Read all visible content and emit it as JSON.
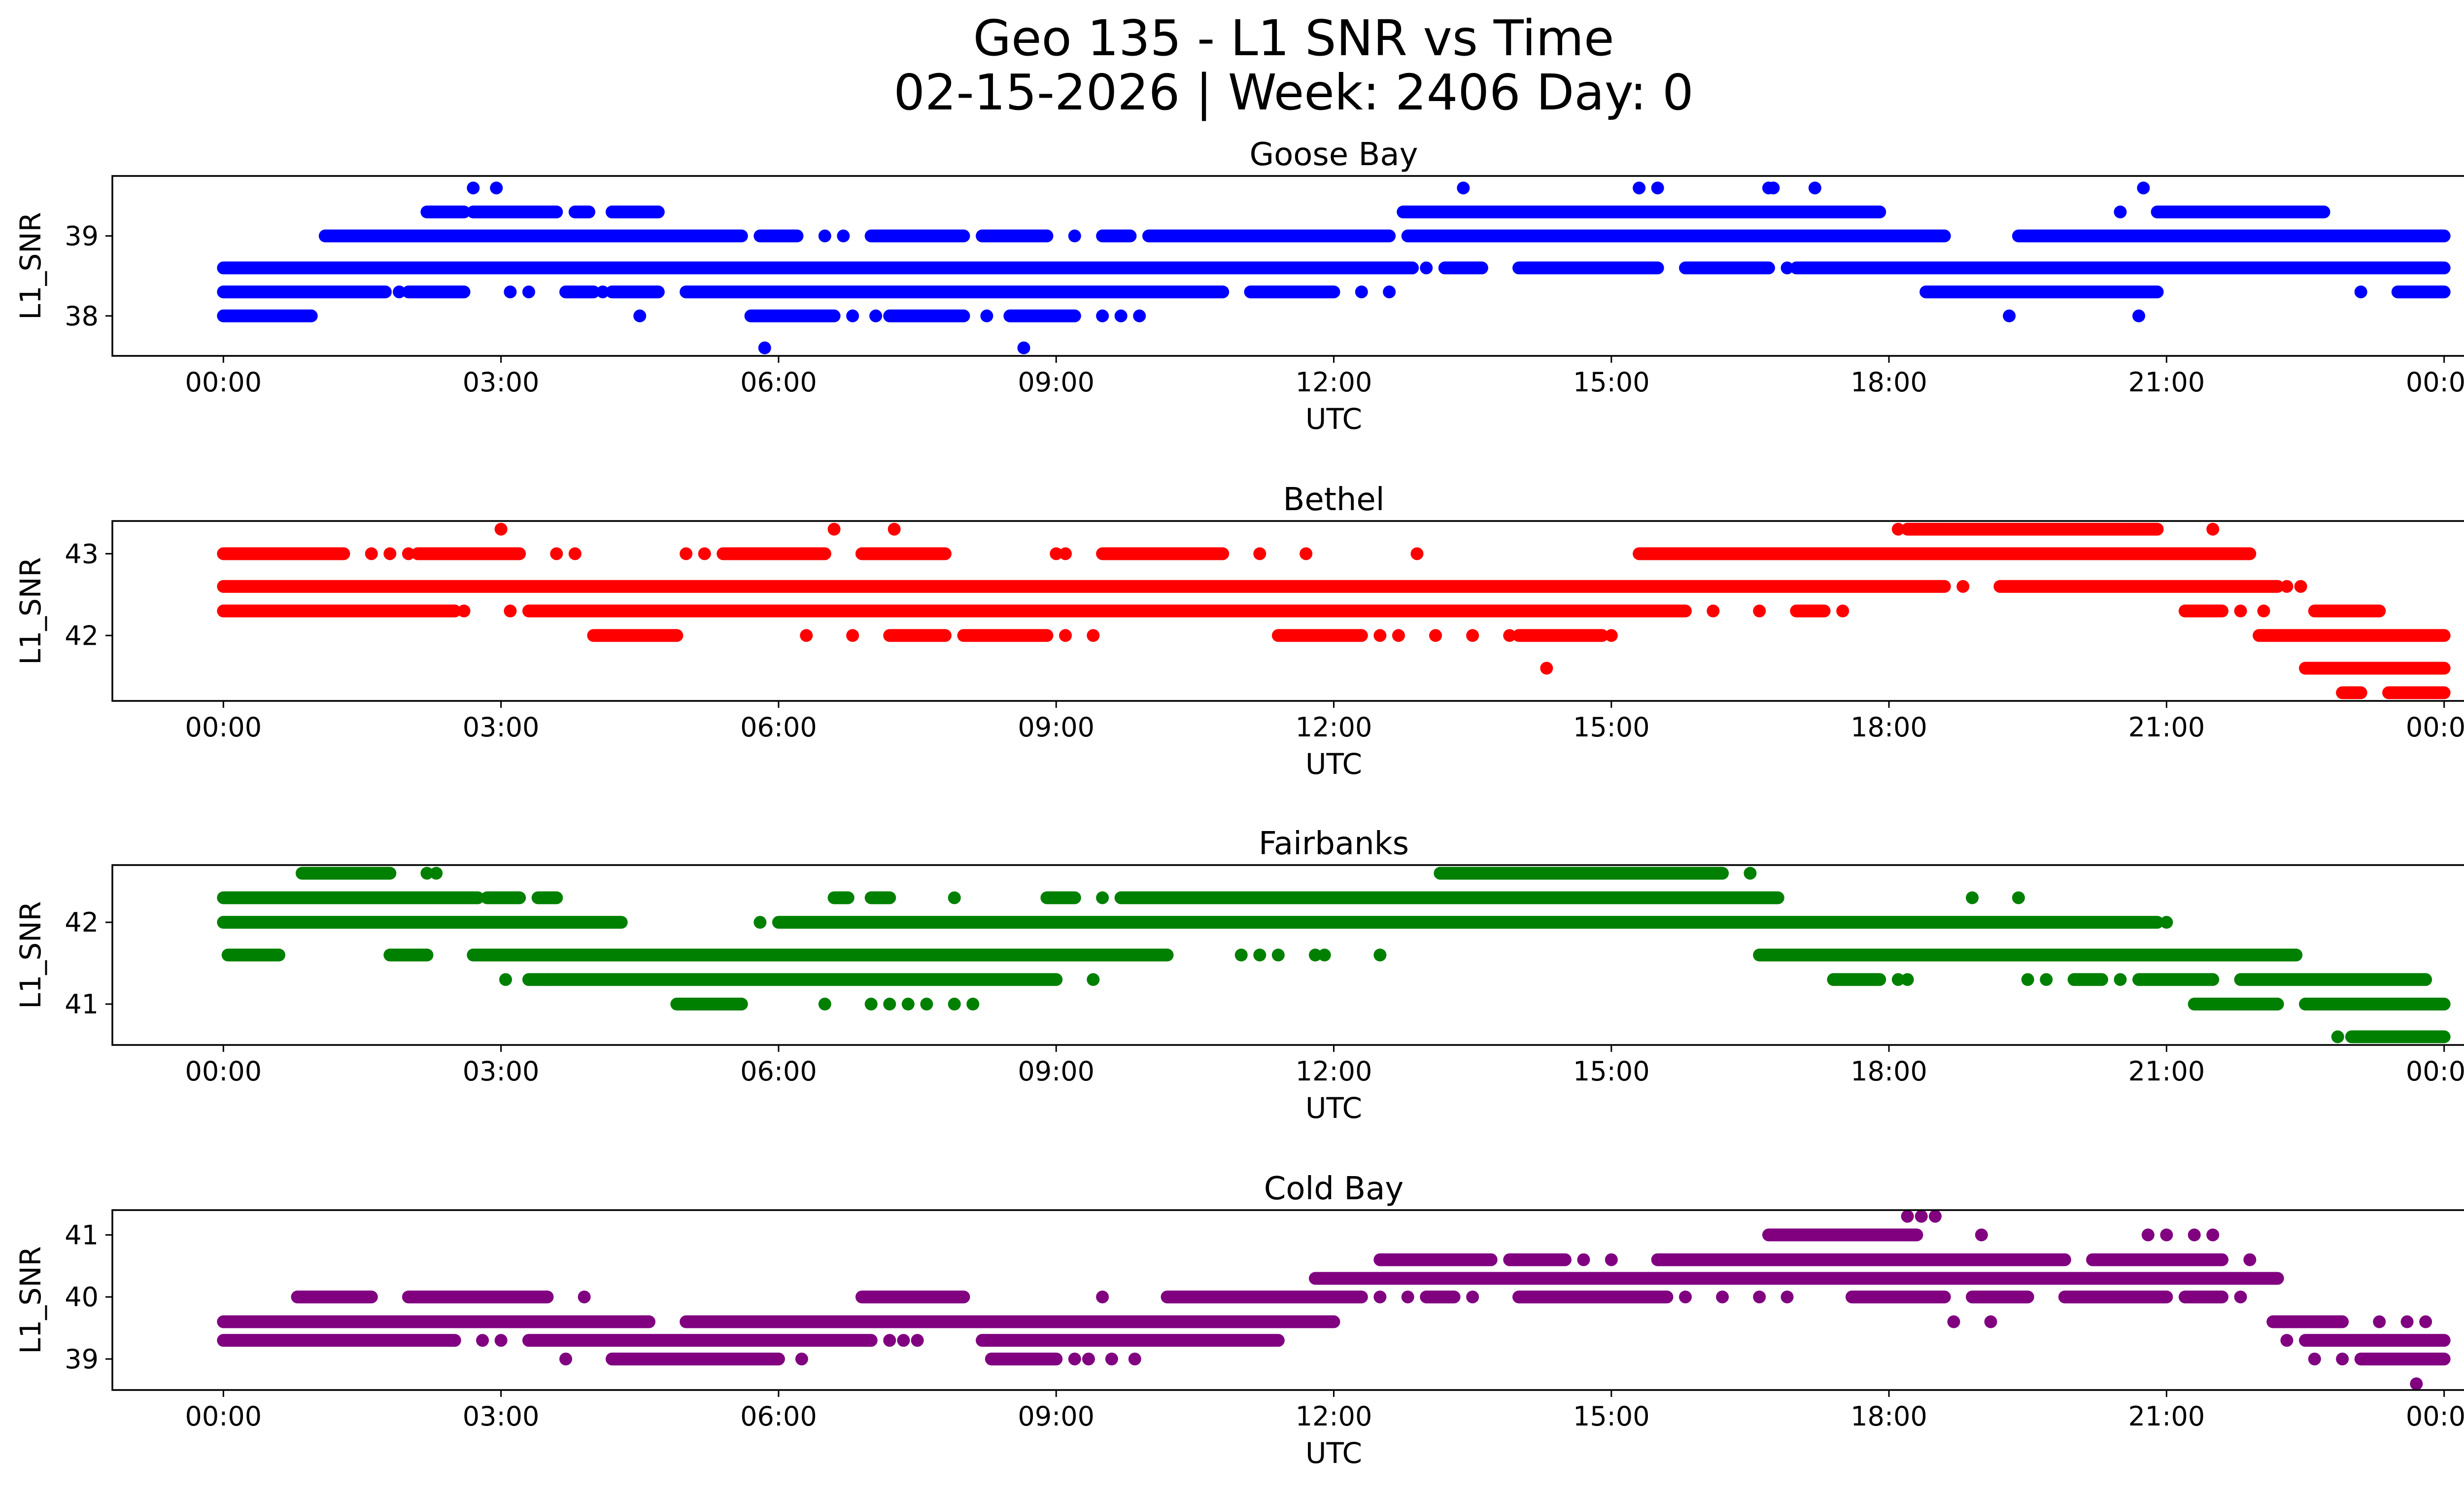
{
  "figure": {
    "title_line1": "Geo 135 - L1 SNR vs Time",
    "title_line2": "02-15-2026 | Week: 2406 Day: 0"
  },
  "chart_data": [
    {
      "type": "scatter",
      "title": "Goose Bay",
      "xlabel": "UTC",
      "ylabel": "L1_SNR",
      "color": "#0000ff",
      "x_unit": "hours UTC",
      "xlim": [
        -1.2,
        25.2
      ],
      "ylim": [
        37.5,
        39.75
      ],
      "yticks": [
        38,
        39
      ],
      "xticks": [
        0,
        3,
        6,
        9,
        12,
        15,
        18,
        21,
        24
      ],
      "xtick_labels": [
        "00:00",
        "03:00",
        "06:00",
        "09:00",
        "12:00",
        "15:00",
        "18:00",
        "21:00",
        "00:00"
      ],
      "series_levels": [
        {
          "y": 38.6,
          "segments": [
            [
              0.0,
              12.85
            ],
            [
              13.2,
              13.6
            ],
            [
              14.0,
              15.5
            ],
            [
              15.8,
              16.7
            ],
            [
              17.0,
              24.0
            ]
          ],
          "points": [
            12.3,
            13.0,
            13.3,
            13.4,
            15.1,
            16.9
          ]
        },
        {
          "y": 38.3,
          "segments": [
            [
              0.0,
              1.75
            ],
            [
              2.0,
              2.6
            ],
            [
              3.7,
              4.0
            ],
            [
              4.2,
              4.7
            ],
            [
              5.0,
              10.8
            ],
            [
              11.1,
              12.0
            ],
            [
              18.4,
              20.9
            ],
            [
              23.5,
              24.0
            ]
          ],
          "points": [
            1.9,
            3.1,
            3.3,
            4.1,
            12.3,
            12.6,
            23.1
          ]
        },
        {
          "y": 38.0,
          "segments": [
            [
              0.0,
              0.95
            ],
            [
              5.7,
              6.6
            ],
            [
              7.2,
              8.0
            ],
            [
              8.5,
              9.2
            ]
          ],
          "points": [
            4.5,
            6.8,
            7.05,
            8.25,
            9.5,
            9.7,
            9.9,
            19.3,
            20.7
          ]
        },
        {
          "y": 39.0,
          "segments": [
            [
              1.1,
              5.6
            ],
            [
              5.8,
              6.2
            ],
            [
              7.0,
              8.0
            ],
            [
              8.2,
              8.9
            ],
            [
              9.5,
              9.8
            ],
            [
              10.0,
              12.6
            ],
            [
              12.8,
              18.6
            ],
            [
              19.4,
              24.0
            ]
          ],
          "points": [
            6.5,
            6.7,
            9.2
          ]
        },
        {
          "y": 39.3,
          "segments": [
            [
              2.2,
              2.6
            ],
            [
              2.7,
              3.6
            ],
            [
              3.8,
              3.95
            ],
            [
              4.2,
              4.7
            ],
            [
              12.75,
              17.9
            ],
            [
              20.9,
              22.7
            ]
          ],
          "points": [
            3.9,
            20.5
          ]
        },
        {
          "y": 39.6,
          "segments": [],
          "points": [
            2.7,
            2.95,
            13.4,
            15.3,
            15.5,
            16.7,
            16.75,
            17.2,
            20.75
          ]
        },
        {
          "y": 37.6,
          "segments": [],
          "points": [
            5.85,
            8.65
          ]
        }
      ]
    },
    {
      "type": "scatter",
      "title": "Bethel",
      "xlabel": "UTC",
      "ylabel": "L1_SNR",
      "color": "#ff0000",
      "x_unit": "hours UTC",
      "xlim": [
        -1.2,
        25.2
      ],
      "ylim": [
        41.2,
        43.4
      ],
      "yticks": [
        42,
        43
      ],
      "xticks": [
        0,
        3,
        6,
        9,
        12,
        15,
        18,
        21,
        24
      ],
      "xtick_labels": [
        "00:00",
        "03:00",
        "06:00",
        "09:00",
        "12:00",
        "15:00",
        "18:00",
        "21:00",
        "00:00"
      ],
      "series_levels": [
        {
          "y": 42.6,
          "segments": [
            [
              0.0,
              18.6
            ],
            [
              19.2,
              22.2
            ]
          ],
          "points": [
            18.8,
            22.3,
            22.45
          ]
        },
        {
          "y": 42.3,
          "segments": [
            [
              0.0,
              2.5
            ],
            [
              3.3,
              15.8
            ]
          ],
          "points": [
            2.6,
            3.1,
            16.1,
            16.6
          ],
          "extra_segments": [
            [
              17.0,
              17.3
            ],
            [
              21.2,
              21.6
            ]
          ],
          "extra_points": [
            17.5,
            21.8,
            22.05
          ]
        },
        {
          "y": 43.0,
          "segments": [
            [
              0.0,
              1.3
            ],
            [
              2.1,
              3.2
            ],
            [
              5.4,
              6.5
            ],
            [
              6.9,
              7.8
            ],
            [
              9.5,
              10.8
            ],
            [
              15.3,
              21.9
            ]
          ],
          "points": [
            1.6,
            1.8,
            2.0,
            3.6,
            3.8,
            5.0,
            5.2,
            9.0,
            9.1,
            11.2,
            11.7,
            12.9
          ]
        },
        {
          "y": 42.0,
          "segments": [
            [
              4.0,
              4.9
            ],
            [
              7.2,
              7.8
            ],
            [
              8.0,
              8.9
            ],
            [
              11.4,
              12.3
            ],
            [
              14.0,
              14.9
            ],
            [
              22.0,
              24.0
            ]
          ],
          "points": [
            6.3,
            6.8,
            9.1,
            9.4,
            12.5,
            12.7,
            13.1,
            13.5,
            13.9,
            15.0
          ]
        },
        {
          "y": 42.3,
          "segments": [
            [
              22.6,
              23.3
            ]
          ],
          "points": []
        },
        {
          "y": 41.6,
          "segments": [
            [
              22.5,
              24.0
            ]
          ],
          "points": [
            14.3
          ]
        },
        {
          "y": 41.3,
          "segments": [
            [
              22.9,
              23.1
            ],
            [
              23.4,
              24.0
            ]
          ],
          "points": []
        },
        {
          "y": 43.3,
          "segments": [
            [
              18.2,
              20.9
            ]
          ],
          "points": [
            3.0,
            6.6,
            7.25,
            18.1,
            21.5
          ]
        }
      ]
    },
    {
      "type": "scatter",
      "title": "Fairbanks",
      "xlabel": "UTC",
      "ylabel": "L1_SNR",
      "color": "#008000",
      "x_unit": "hours UTC",
      "xlim": [
        -1.2,
        25.2
      ],
      "ylim": [
        40.5,
        42.7
      ],
      "yticks": [
        41,
        42
      ],
      "xticks": [
        0,
        3,
        6,
        9,
        12,
        15,
        18,
        21,
        24
      ],
      "xtick_labels": [
        "00:00",
        "03:00",
        "06:00",
        "09:00",
        "12:00",
        "15:00",
        "18:00",
        "21:00",
        "00:00"
      ],
      "series_levels": [
        {
          "y": 42.3,
          "segments": [
            [
              0.0,
              2.75
            ],
            [
              2.85,
              3.2
            ],
            [
              3.4,
              3.6
            ],
            [
              6.6,
              6.75
            ],
            [
              7.0,
              7.2
            ],
            [
              8.9,
              9.2
            ],
            [
              9.7,
              16.8
            ]
          ],
          "points": [
            7.9,
            9.5,
            18.9,
            19.4
          ]
        },
        {
          "y": 42.0,
          "segments": [
            [
              0.0,
              4.3
            ],
            [
              6.0,
              20.9
            ]
          ],
          "points": [
            5.8,
            21.0
          ]
        },
        {
          "y": 41.6,
          "segments": [
            [
              0.05,
              0.6
            ],
            [
              1.8,
              2.2
            ],
            [
              2.7,
              10.2
            ],
            [
              16.6,
              22.4
            ]
          ],
          "points": [
            11.0,
            11.2,
            11.4,
            11.8,
            11.9,
            12.5
          ]
        },
        {
          "y": 41.3,
          "segments": [
            [
              3.3,
              9.0
            ],
            [
              17.4,
              17.9
            ],
            [
              20.0,
              20.3
            ],
            [
              20.7,
              21.5
            ],
            [
              21.8,
              23.8
            ]
          ],
          "points": [
            3.05,
            3.5,
            9.4,
            18.1,
            18.2,
            19.5,
            19.7,
            20.5
          ]
        },
        {
          "y": 41.0,
          "segments": [
            [
              4.9,
              5.6
            ],
            [
              21.3,
              22.2
            ],
            [
              22.5,
              24.0
            ]
          ],
          "points": [
            6.5,
            7.0,
            7.2,
            7.4,
            7.6,
            7.9,
            8.1
          ]
        },
        {
          "y": 42.6,
          "segments": [
            [
              0.85,
              1.8
            ],
            [
              13.15,
              16.2
            ]
          ],
          "points": [
            2.2,
            2.3,
            16.5
          ]
        },
        {
          "y": 40.6,
          "segments": [
            [
              23.0,
              24.0
            ]
          ],
          "points": [
            22.85
          ]
        }
      ]
    },
    {
      "type": "scatter",
      "title": "Cold Bay",
      "xlabel": "UTC",
      "ylabel": "L1_SNR",
      "color": "#800080",
      "x_unit": "hours UTC",
      "xlim": [
        -1.2,
        25.2
      ],
      "ylim": [
        38.5,
        41.4
      ],
      "yticks": [
        39,
        40,
        41
      ],
      "xticks": [
        0,
        3,
        6,
        9,
        12,
        15,
        18,
        21,
        24
      ],
      "xtick_labels": [
        "00:00",
        "03:00",
        "06:00",
        "09:00",
        "12:00",
        "15:00",
        "18:00",
        "21:00",
        "00:00"
      ],
      "series_levels": [
        {
          "y": 39.6,
          "segments": [
            [
              0.0,
              4.6
            ],
            [
              5.0,
              12.0
            ],
            [
              22.15,
              22.9
            ]
          ],
          "points": [
            23.3,
            23.6,
            23.8
          ]
        },
        {
          "y": 39.3,
          "segments": [
            [
              0.0,
              2.5
            ],
            [
              3.3,
              7.0
            ],
            [
              8.2,
              11.4
            ],
            [
              22.5,
              24.0
            ]
          ],
          "points": [
            2.8,
            3.0,
            7.2,
            7.35,
            7.5,
            22.3
          ]
        },
        {
          "y": 39.0,
          "segments": [
            [
              4.2,
              6.0
            ],
            [
              8.3,
              9.0
            ],
            [
              23.1,
              24.0
            ]
          ],
          "points": [
            3.7,
            6.25,
            9.2,
            9.35,
            9.6,
            9.85,
            22.6,
            22.9
          ]
        },
        {
          "y": 40.0,
          "segments": [
            [
              0.8,
              1.6
            ],
            [
              2.0,
              3.5
            ],
            [
              6.9,
              8.0
            ],
            [
              10.2,
              12.3
            ],
            [
              13.0,
              13.3
            ],
            [
              14.0,
              15.6
            ],
            [
              17.6,
              18.6
            ],
            [
              18.9,
              19.5
            ],
            [
              19.9,
              21.0
            ],
            [
              21.2,
              21.6
            ]
          ],
          "points": [
            3.9,
            9.5,
            12.5,
            12.8,
            13.5,
            15.8,
            16.2,
            16.6,
            16.9,
            21.8
          ]
        },
        {
          "y": 40.3,
          "segments": [
            [
              11.8,
              22.2
            ]
          ],
          "points": []
        },
        {
          "y": 40.6,
          "segments": [
            [
              12.5,
              13.7
            ],
            [
              13.9,
              14.5
            ],
            [
              15.5,
              19.9
            ],
            [
              20.2,
              21.6
            ]
          ],
          "points": [
            14.7,
            15.0,
            21.9
          ]
        },
        {
          "y": 41.0,
          "segments": [
            [
              16.7,
              18.3
            ]
          ],
          "points": [
            19.0,
            20.8,
            21.0,
            21.3,
            21.5
          ]
        },
        {
          "y": 39.6,
          "segments": [],
          "points": [
            18.7,
            19.1
          ]
        },
        {
          "y": 41.3,
          "segments": [],
          "points": [
            18.2,
            18.35,
            18.5
          ]
        },
        {
          "y": 38.6,
          "segments": [],
          "points": [
            23.7
          ]
        }
      ]
    }
  ]
}
